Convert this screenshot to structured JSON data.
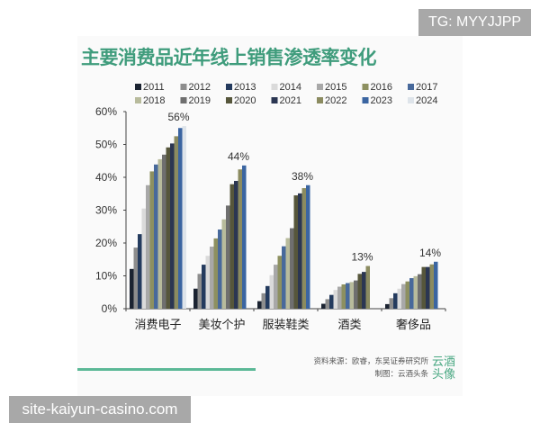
{
  "watermark_top": "TG: MYYJJPP",
  "watermark_bottom": "site-kaiyun-casino.com",
  "source": "资料来源：欧睿，东吴证券研究所",
  "credit": "制图：云酒头条",
  "logo_text": "云酒头像",
  "chart_data": {
    "type": "bar",
    "title": "主要消费品近年线上销售渗透率变化",
    "categories": [
      "消费电子",
      "美妆个护",
      "服装鞋类",
      "酒类",
      "奢侈品"
    ],
    "yticks": [
      "0%",
      "10%",
      "20%",
      "30%",
      "40%",
      "50%",
      "60%"
    ],
    "ylim": [
      0,
      60
    ],
    "unit": "%",
    "legend_position": "top",
    "series": [
      {
        "name": "2011",
        "color": "#1b2331",
        "values": [
          12.1,
          6.1,
          2.3,
          1.5,
          1.4
        ]
      },
      {
        "name": "2012",
        "color": "#8d8d8d",
        "values": [
          18.6,
          10.6,
          4.7,
          2.9,
          3.2
        ]
      },
      {
        "name": "2013",
        "color": "#243b5e",
        "values": [
          22.7,
          13.4,
          6.9,
          4.2,
          4.7
        ]
      },
      {
        "name": "2014",
        "color": "#dadada",
        "values": [
          30.5,
          16.1,
          10.2,
          5.7,
          6.1
        ]
      },
      {
        "name": "2015",
        "color": "#a8a8a8",
        "values": [
          37.6,
          18.9,
          13.4,
          6.7,
          7.5
        ]
      },
      {
        "name": "2016",
        "color": "#8d9060",
        "values": [
          41.8,
          21.4,
          16.1,
          7.4,
          8.3
        ]
      },
      {
        "name": "2017",
        "color": "#48699b",
        "values": [
          43.9,
          24.1,
          19.0,
          7.8,
          9.3
        ]
      },
      {
        "name": "2018",
        "color": "#b8bb9c",
        "values": [
          45.5,
          27.2,
          21.5,
          8.1,
          9.9
        ]
      },
      {
        "name": "2019",
        "color": "#6f6f6f",
        "values": [
          46.9,
          31.4,
          24.5,
          8.6,
          10.5
        ]
      },
      {
        "name": "2020",
        "color": "#56563b",
        "values": [
          49.1,
          37.9,
          34.5,
          10.6,
          12.7
        ]
      },
      {
        "name": "2021",
        "color": "#2b3652",
        "values": [
          50.3,
          38.9,
          35.1,
          11.2,
          12.7
        ]
      },
      {
        "name": "2022",
        "color": "#8b8b60",
        "values": [
          52.5,
          42.4,
          36.7,
          13.0,
          13.5
        ]
      },
      {
        "name": "2023",
        "color": "#3b65a1",
        "values": [
          55.0,
          43.6,
          37.6,
          null,
          14.3
        ]
      },
      {
        "name": "2024",
        "color": "#dee4ea",
        "values": [
          55.6,
          null,
          null,
          null,
          null
        ]
      }
    ],
    "data_labels": [
      "56%",
      "44%",
      "38%",
      "13%",
      "14%"
    ]
  }
}
